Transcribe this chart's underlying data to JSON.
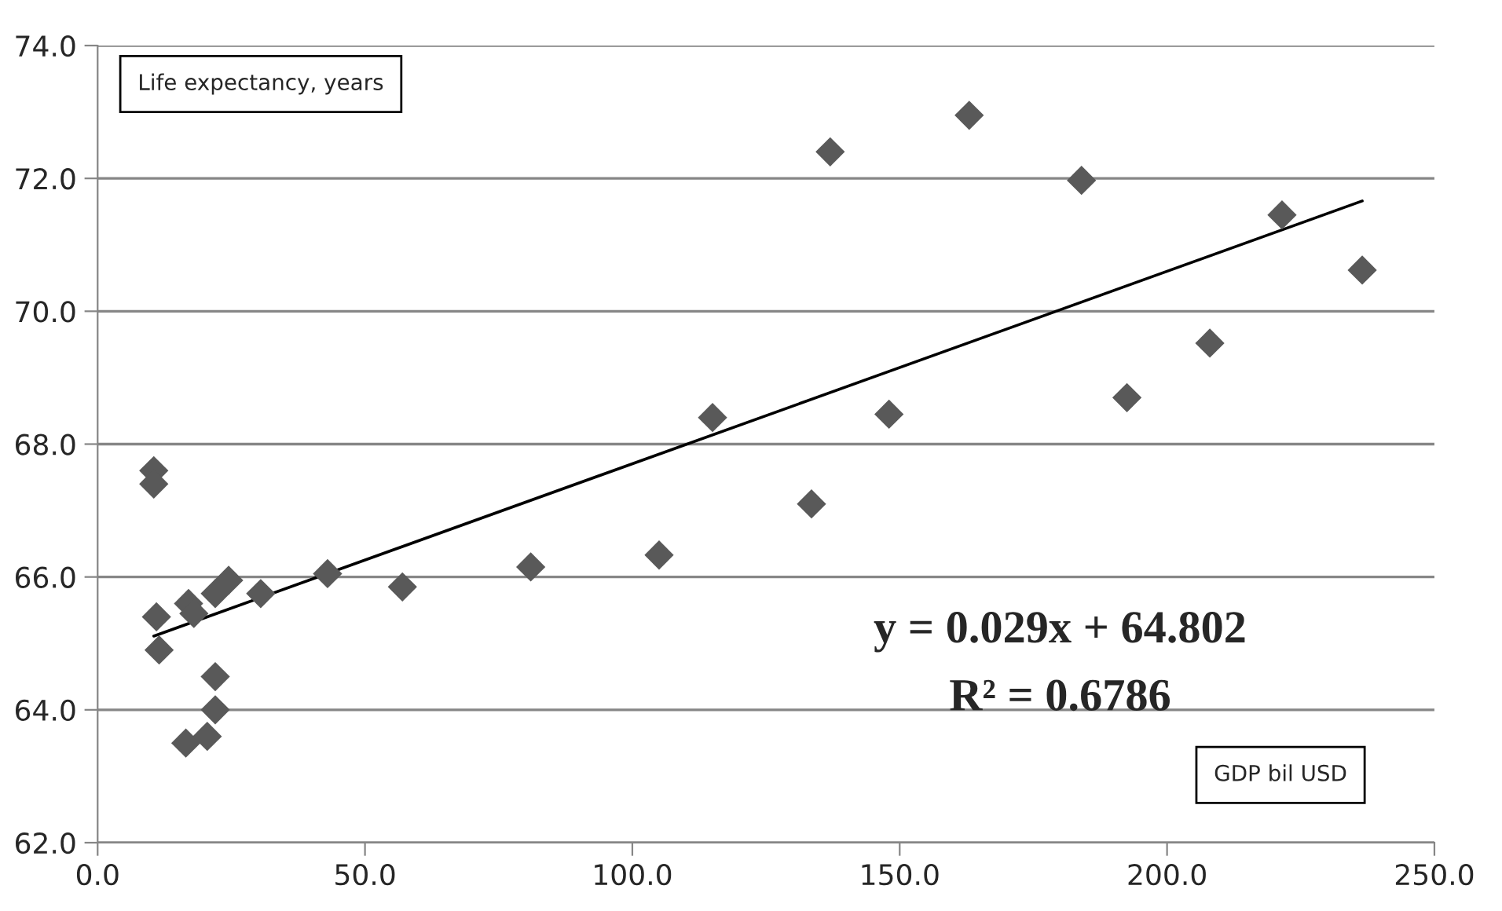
{
  "chart_data": {
    "type": "scatter",
    "xlabel": "GDP bil USD",
    "ylabel": "Life expectancy, years",
    "annotations": [
      "y = 0.029x + 64.802",
      "R² = 0.6786"
    ],
    "series": [
      {
        "color": "#595959",
        "marker": "diamond",
        "x": [
          10.5,
          10.5,
          11,
          11.5,
          16.5,
          17,
          18,
          20.5,
          22,
          22,
          22,
          24.5,
          30.5,
          43,
          57,
          81,
          105,
          115,
          133.5,
          137,
          148,
          163,
          184,
          192.5,
          208,
          221.5,
          236.5
        ],
        "values": [
          67.6,
          67.4,
          65.4,
          64.9,
          63.5,
          65.6,
          65.45,
          63.6,
          64.5,
          64.0,
          65.75,
          65.95,
          65.75,
          66.05,
          65.85,
          66.15,
          66.33,
          68.4,
          67.1,
          72.4,
          68.45,
          72.95,
          71.97,
          68.7,
          69.52,
          71.45,
          70.62
        ]
      },
      {
        "type": "line",
        "color": "#000000",
        "marker": "none",
        "x": [
          10.5,
          236.5
        ],
        "values": [
          65.11,
          71.66
        ]
      }
    ],
    "xlim": [
      0,
      250
    ],
    "ylim": [
      62,
      74
    ],
    "xticks": [
      {
        "value": 0,
        "label": "0.0"
      },
      {
        "value": 50,
        "label": "50.0"
      },
      {
        "value": 100,
        "label": "100.0"
      },
      {
        "value": 150,
        "label": "150.0"
      },
      {
        "value": 200,
        "label": "200.0"
      },
      {
        "value": 250,
        "label": "250.0"
      }
    ],
    "yticks": [
      {
        "value": 62,
        "label": "62.0"
      },
      {
        "value": 64,
        "label": "64.0"
      },
      {
        "value": 66,
        "label": "66.0"
      },
      {
        "value": 68,
        "label": "68.0"
      },
      {
        "value": 70,
        "label": "70.0"
      },
      {
        "value": 72,
        "label": "72.0"
      },
      {
        "value": 74,
        "label": "74.0"
      }
    ],
    "grid": "y",
    "legend": false
  }
}
